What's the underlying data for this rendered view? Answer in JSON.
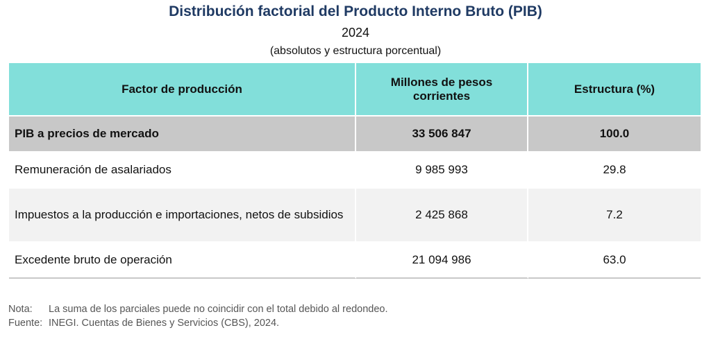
{
  "header": {
    "title": "Distribución factorial del Producto Interno Bruto (PIB)",
    "year": "2024",
    "subtitle": "(absolutos y estructura porcentual)"
  },
  "table": {
    "columns": [
      "Factor de producción",
      "Millones de pesos corrientes",
      "Estructura (%)"
    ],
    "rows": [
      [
        "PIB a precios de mercado",
        "33 506 847",
        "100.0"
      ],
      [
        "Remuneración de asalariados",
        "9 985 993",
        "29.8"
      ],
      [
        "Impuestos a la producción e importaciones, netos de subsidios",
        "2 425 868",
        "7.2"
      ],
      [
        "Excedente bruto de operación",
        "21 094 986",
        "63.0"
      ]
    ]
  },
  "notes": [
    {
      "label": "Nota:",
      "text": "La suma de los parciales puede no coincidir con el total debido al redondeo."
    },
    {
      "label": "Fuente:",
      "text": "INEGI. Cuentas de Bienes y Servicios (CBS), 2024."
    }
  ]
}
